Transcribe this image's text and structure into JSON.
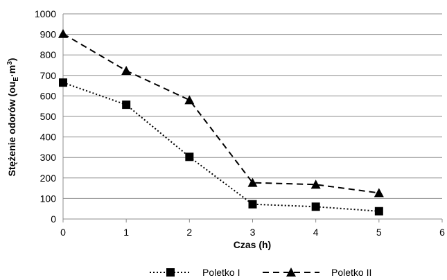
{
  "chart_data": {
    "type": "line",
    "title": "",
    "xlabel": "Czas (h)",
    "ylabel_prefix": "Stężenie odorów (ou",
    "ylabel_sub": "E",
    "ylabel_mid": "·m",
    "ylabel_sup": "3",
    "ylabel_suffix": ")",
    "xlim": [
      0,
      6
    ],
    "ylim": [
      0,
      1000
    ],
    "x_ticks": [
      "0",
      "1",
      "2",
      "3",
      "4",
      "5",
      "6"
    ],
    "y_ticks": [
      "0",
      "100",
      "200",
      "300",
      "400",
      "500",
      "600",
      "700",
      "800",
      "900",
      "1000"
    ],
    "grid": "horizontal",
    "legend_position": "bottom",
    "series": [
      {
        "name": "Poletko I",
        "marker": "square",
        "line_style": "dotted",
        "color": "#000000",
        "x": [
          0,
          1,
          2,
          3,
          4,
          5
        ],
        "y": [
          665,
          557,
          303,
          72,
          60,
          38
        ]
      },
      {
        "name": "Poletko II",
        "marker": "triangle",
        "line_style": "dashed",
        "color": "#000000",
        "x": [
          0,
          1,
          2,
          3,
          4,
          5
        ],
        "y": [
          903,
          723,
          580,
          177,
          168,
          127
        ]
      }
    ]
  }
}
